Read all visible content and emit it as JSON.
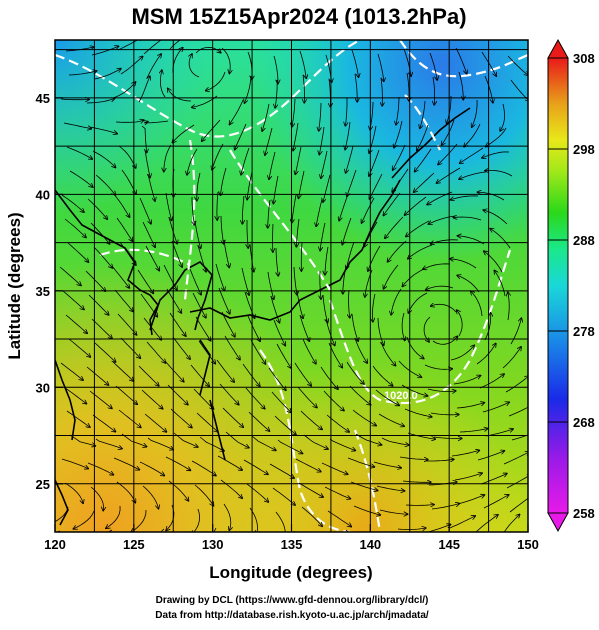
{
  "title": "MSM 15Z15Apr2024 (1013.2hPa)",
  "x_axis": {
    "label": "Longitude (degrees)",
    "ticks": [
      "120",
      "125",
      "130",
      "135",
      "140",
      "145",
      "150"
    ]
  },
  "y_axis": {
    "label": "Latitude  (degrees)",
    "ticks": [
      "25",
      "30",
      "35",
      "40",
      "45"
    ]
  },
  "colorbar": {
    "ticks": [
      "258",
      "268",
      "278",
      "288",
      "298",
      "308"
    ],
    "colors": [
      "#e81ae8",
      "#9a1ae8",
      "#1a2ae8",
      "#1a8ae8",
      "#1ad8d8",
      "#1ae88a",
      "#2ad81a",
      "#a0e81a",
      "#e8e81a",
      "#e8a01a",
      "#e8501a",
      "#e81a1a"
    ]
  },
  "contour_label": "1020.0",
  "credits": {
    "line1": "Drawing by DCL (https://www.gfd-dennou.org/library/dcl/)",
    "line2": "Data from http://database.rish.kyoto-u.ac.jp/arch/jmadata/"
  }
}
